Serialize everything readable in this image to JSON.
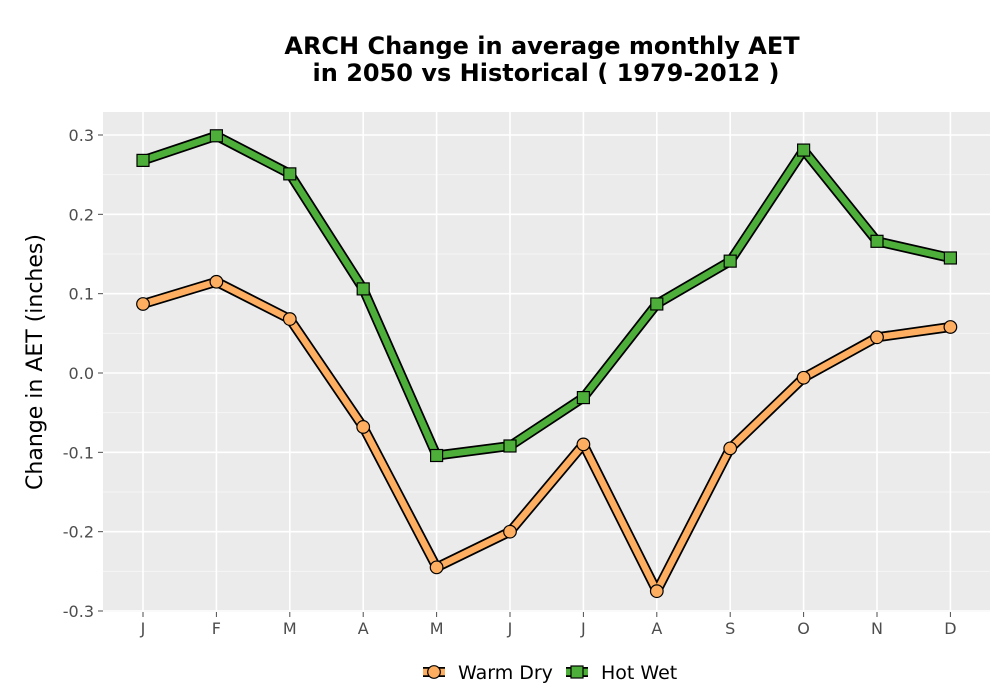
{
  "chart_data": {
    "type": "line",
    "title_line1": "ARCH  Change in average monthly AET",
    "title_line2": "in 2050 vs Historical ( 1979-2012 )",
    "xlabel": "",
    "ylabel": "Change in AET (inches)",
    "categories": [
      "J",
      "F",
      "M",
      "A",
      "M",
      "J",
      "J",
      "A",
      "S",
      "O",
      "N",
      "D"
    ],
    "ylim": [
      -0.3,
      0.3
    ],
    "yticks": [
      -0.3,
      -0.2,
      -0.1,
      0.0,
      0.1,
      0.2,
      0.3
    ],
    "ytick_labels": [
      "-0.3",
      "-0.2",
      "-0.1",
      "0.0",
      "0.1",
      "0.2",
      "0.3"
    ],
    "grid": true,
    "legend_position": "bottom",
    "series": [
      {
        "name": "Warm Dry",
        "marker": "circle",
        "color": "#fdae61",
        "values": [
          0.087,
          0.115,
          0.068,
          -0.068,
          -0.245,
          -0.2,
          -0.09,
          -0.275,
          -0.095,
          -0.006,
          0.045,
          0.058
        ]
      },
      {
        "name": "Hot Wet",
        "marker": "square",
        "color": "#4daf3a",
        "values": [
          0.268,
          0.299,
          0.251,
          0.106,
          -0.104,
          -0.092,
          -0.031,
          0.087,
          0.141,
          0.281,
          0.166,
          0.145
        ]
      }
    ]
  }
}
